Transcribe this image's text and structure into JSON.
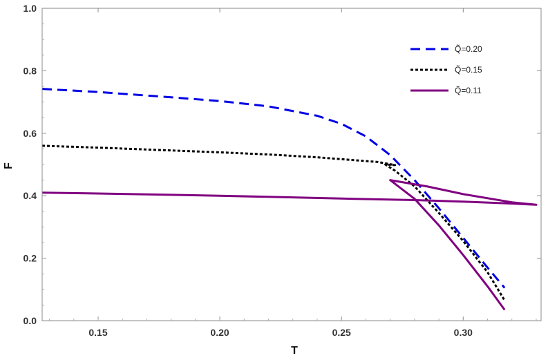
{
  "chart_data": {
    "type": "line",
    "xlabel": "T",
    "ylabel": "F",
    "xlim": [
      0.127,
      0.332
    ],
    "ylim": [
      0,
      1.0
    ],
    "x_ticks": [
      "0.15",
      "0.20",
      "0.25",
      "0.30"
    ],
    "y_ticks": [
      "0.0",
      "0.2",
      "0.4",
      "0.6",
      "0.8",
      "1.0"
    ],
    "grid": false,
    "legend_position": "top-right",
    "series": [
      {
        "name": "Q̃=0.20",
        "color": "#0000e6",
        "style": "dashed",
        "x": [
          0.127,
          0.15,
          0.18,
          0.2,
          0.22,
          0.24,
          0.25,
          0.26,
          0.27,
          0.28,
          0.29,
          0.3,
          0.31,
          0.317
        ],
        "y": [
          0.742,
          0.732,
          0.715,
          0.703,
          0.686,
          0.656,
          0.63,
          0.59,
          0.53,
          0.45,
          0.36,
          0.265,
          0.17,
          0.105
        ]
      },
      {
        "name": "Q̃=0.15",
        "color": "#000000",
        "style": "dotted",
        "x": [
          0.127,
          0.15,
          0.18,
          0.2,
          0.22,
          0.24,
          0.265,
          0.272,
          0.268,
          0.272,
          0.28,
          0.29,
          0.3,
          0.31,
          0.317
        ],
        "y": [
          0.56,
          0.554,
          0.545,
          0.539,
          0.532,
          0.523,
          0.508,
          0.498,
          0.5,
          0.48,
          0.43,
          0.345,
          0.255,
          0.155,
          0.065
        ]
      },
      {
        "name": "Q̃=0.11",
        "color": "#800080",
        "style": "solid",
        "x": [
          0.127,
          0.15,
          0.2,
          0.25,
          0.28,
          0.3,
          0.32,
          0.33,
          0.32,
          0.3,
          0.285,
          0.27,
          0.28,
          0.29,
          0.3,
          0.31,
          0.317
        ],
        "y": [
          0.41,
          0.407,
          0.4,
          0.391,
          0.386,
          0.381,
          0.375,
          0.371,
          0.379,
          0.405,
          0.43,
          0.45,
          0.39,
          0.305,
          0.21,
          0.11,
          0.035
        ]
      }
    ]
  }
}
